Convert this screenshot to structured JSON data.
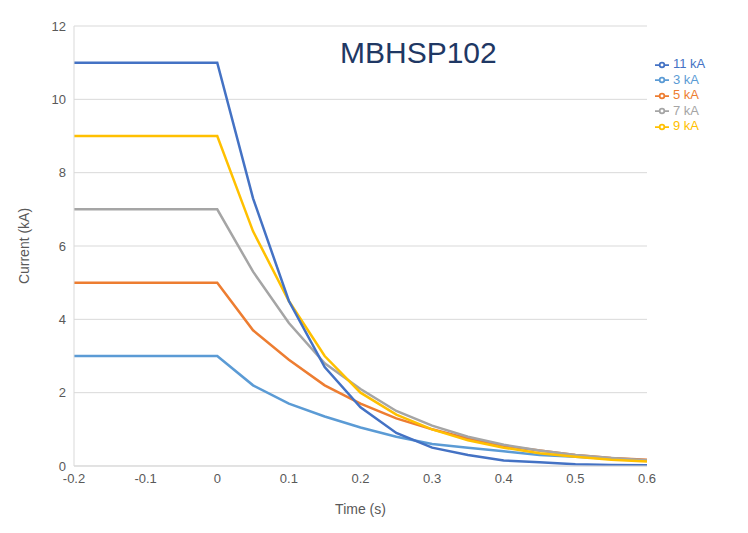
{
  "chart_data": {
    "type": "line",
    "title": "MBHSP102",
    "x_label": "Time (s)",
    "y_label": "Current (kA)",
    "x": [
      -0.2,
      0,
      0.05,
      0.1,
      0.15,
      0.2,
      0.25,
      0.3,
      0.35,
      0.4,
      0.45,
      0.5,
      0.55,
      0.6
    ],
    "series": [
      {
        "name": "3 kA",
        "color": "#5b9bd5",
        "values": [
          3,
          3,
          2.2,
          1.7,
          1.35,
          1.05,
          0.8,
          0.6,
          0.5,
          0.4,
          0.3,
          0.25,
          0.2,
          0.15
        ]
      },
      {
        "name": "5 kA",
        "color": "#ed7d31",
        "values": [
          5,
          5,
          3.7,
          2.9,
          2.2,
          1.7,
          1.3,
          1.0,
          0.75,
          0.55,
          0.42,
          0.3,
          0.22,
          0.17
        ]
      },
      {
        "name": "7 kA",
        "color": "#a5a5a5",
        "values": [
          7,
          7,
          5.3,
          3.9,
          2.8,
          2.1,
          1.5,
          1.1,
          0.8,
          0.58,
          0.42,
          0.3,
          0.22,
          0.16
        ]
      },
      {
        "name": "9 kA",
        "color": "#ffc000",
        "values": [
          9,
          9,
          6.4,
          4.5,
          3.0,
          2.0,
          1.4,
          1.0,
          0.7,
          0.5,
          0.35,
          0.25,
          0.17,
          0.12
        ]
      },
      {
        "name": "11 kA",
        "color": "#4472c4",
        "values": [
          11,
          11,
          7.3,
          4.5,
          2.7,
          1.6,
          0.9,
          0.5,
          0.3,
          0.15,
          0.1,
          0.05,
          0.03,
          0.02
        ]
      }
    ],
    "xlim": [
      -0.2,
      0.6
    ],
    "xticks": [
      -0.2,
      -0.1,
      0,
      0.1,
      0.2,
      0.3,
      0.4,
      0.5,
      0.6
    ],
    "ylim": [
      0,
      12
    ],
    "yticks": [
      0,
      2,
      4,
      6,
      8,
      10,
      12
    ],
    "grid": true,
    "legend": "right"
  }
}
